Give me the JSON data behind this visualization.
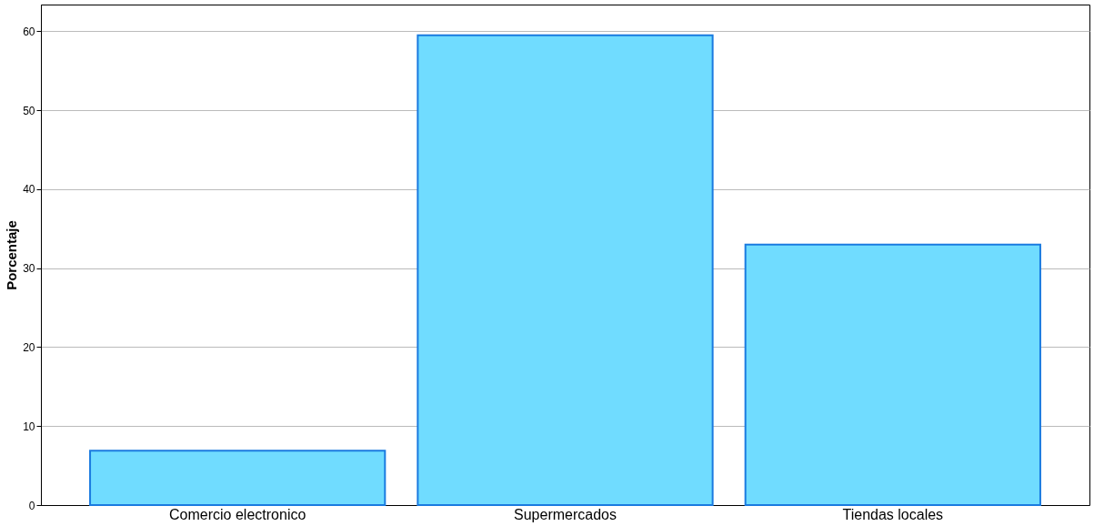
{
  "chart_data": {
    "type": "bar",
    "ylabel": "Porcentaje",
    "categories": [
      "Comercio electronico",
      "Supermercados",
      "Tiendas locales"
    ],
    "values": [
      6.9,
      59.5,
      33.0
    ],
    "color": "#70dcff",
    "ylim": [
      0,
      63.4
    ],
    "yticks": [
      0,
      10,
      20,
      30,
      40,
      50,
      60
    ],
    "grid": "y"
  }
}
